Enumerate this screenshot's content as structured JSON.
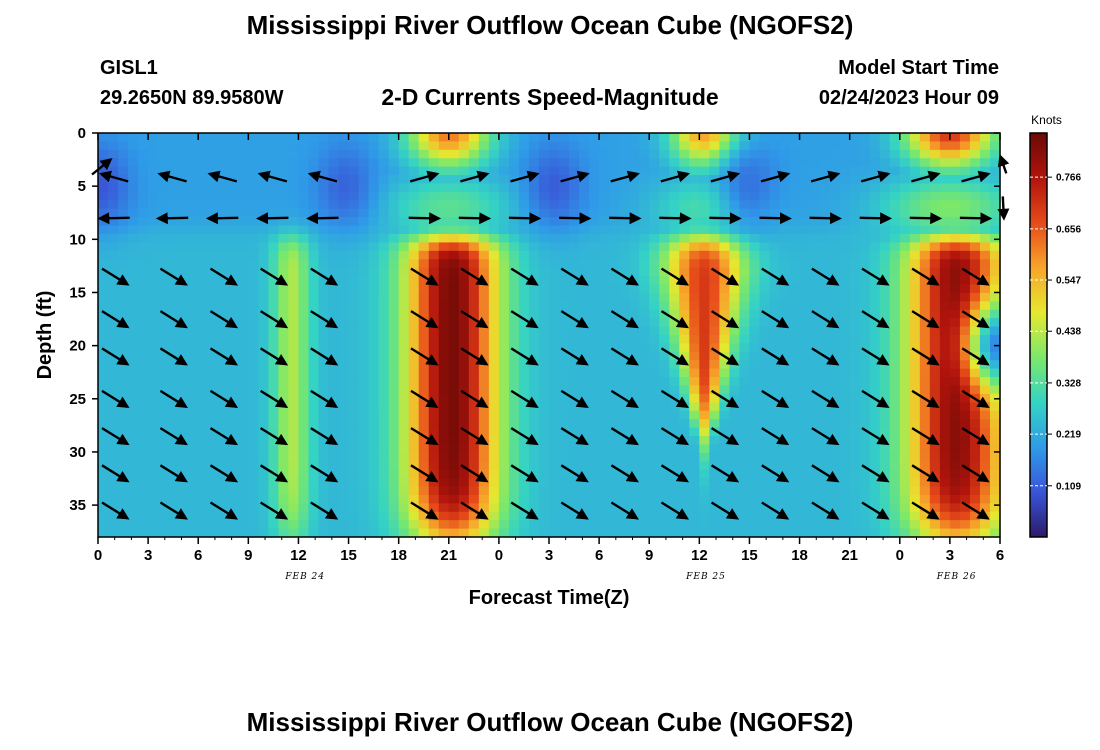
{
  "title": "Mississippi River Outflow Ocean Cube (NGOFS2)",
  "footer_title": "Mississippi River Outflow Ocean Cube (NGOFS2)",
  "station": {
    "id": "GISL1",
    "coords": "29.2650N  89.9580W"
  },
  "plot_subtitle": "2-D Currents Speed-Magnitude",
  "model": {
    "label": "Model Start Time",
    "value": "02/24/2023 Hour 09"
  },
  "chart_data": {
    "type": "heatmap",
    "xlabel": "Forecast Time(Z)",
    "ylabel": "Depth (ft)",
    "xlim": [
      0,
      54
    ],
    "ylim": [
      0,
      38
    ],
    "y_inverted": true,
    "x_ticks": [
      0,
      3,
      6,
      9,
      12,
      15,
      18,
      21,
      24,
      27,
      30,
      33,
      36,
      39,
      42,
      45,
      48,
      51,
      54
    ],
    "x_tick_labels": [
      "0",
      "3",
      "6",
      "9",
      "12",
      "15",
      "18",
      "21",
      "0",
      "3",
      "6",
      "9",
      "12",
      "15",
      "18",
      "21",
      "0",
      "3",
      "6"
    ],
    "y_ticks": [
      0,
      5,
      10,
      15,
      20,
      25,
      30,
      35
    ],
    "y_tick_labels": [
      "0",
      "5",
      "10",
      "15",
      "20",
      "25",
      "30",
      "35"
    ],
    "date_labels": [
      {
        "x": 12.4,
        "text": "FEB 24"
      },
      {
        "x": 36.4,
        "text": "FEB 25"
      },
      {
        "x": 51.4,
        "text": "FEB 26"
      }
    ],
    "colorbar": {
      "unit": "Knots",
      "min": 0.0,
      "max": 0.86,
      "ticks": [
        0.109,
        0.219,
        0.328,
        0.438,
        0.547,
        0.656,
        0.766
      ],
      "tick_labels": [
        "0.109",
        "0.219",
        "0.328",
        "0.438",
        "0.547",
        "0.656",
        "0.766"
      ],
      "colormap": "jet-like",
      "stops": [
        "#2b1b6a",
        "#3a55d8",
        "#2f9be8",
        "#35d3c4",
        "#7be86a",
        "#e6e82f",
        "#f7a52a",
        "#e64a1a",
        "#b0140c",
        "#6a0a06"
      ]
    },
    "speed_features": {
      "background_upper": 0.2,
      "background_lower": 0.24,
      "upper_layer_max_depth": 9,
      "lower_layer_peaks": [
        {
          "t": 11.6,
          "width": 1.2,
          "value": 0.43,
          "depth_top": 10,
          "depth_bottom": 38,
          "taper": false
        },
        {
          "t": 21.2,
          "width": 3.0,
          "value": 0.84,
          "depth_top": 10,
          "depth_bottom": 38,
          "taper": false
        },
        {
          "t": 36.3,
          "width": 2.6,
          "value": 0.7,
          "depth_top": 10,
          "depth_bottom": 28,
          "taper": true
        },
        {
          "t": 51.4,
          "width": 3.2,
          "value": 0.82,
          "depth_top": 10,
          "depth_bottom": 38,
          "taper": false
        }
      ],
      "upper_layer_peaks": [
        {
          "t": 21.0,
          "width": 2.4,
          "value": 0.62
        },
        {
          "t": 36.3,
          "width": 2.0,
          "value": 0.58
        },
        {
          "t": 51.0,
          "width": 2.6,
          "value": 0.7
        }
      ],
      "lows": [
        {
          "t": 0.2,
          "d": 5,
          "value": 0.08
        },
        {
          "t": 14.8,
          "d": 5,
          "value": 0.1
        },
        {
          "t": 27.3,
          "d": 5,
          "value": 0.09
        },
        {
          "t": 39.0,
          "d": 5,
          "value": 0.12
        },
        {
          "t": 53.8,
          "d": 20,
          "value": 0.1
        }
      ]
    },
    "vectors": {
      "times": [
        1.0,
        4.5,
        7.5,
        10.5,
        13.5,
        19.5,
        22.5,
        25.5,
        28.5,
        31.5,
        34.5,
        37.5,
        40.5,
        43.5,
        46.5,
        49.5,
        52.5
      ],
      "upper_depths": [
        4.2,
        8.0
      ],
      "lower_depths": [
        13.5,
        17.5,
        21.0,
        25.0,
        28.5,
        32.0,
        35.5
      ],
      "upper_dir_4": "toward upper-left (WNW) until ~t17, then toward upper-right (ENE)",
      "upper_dir_8": "toward left (W) until ~t18, then toward right (E)",
      "lower_dir": "toward lower-right (SE)"
    }
  }
}
